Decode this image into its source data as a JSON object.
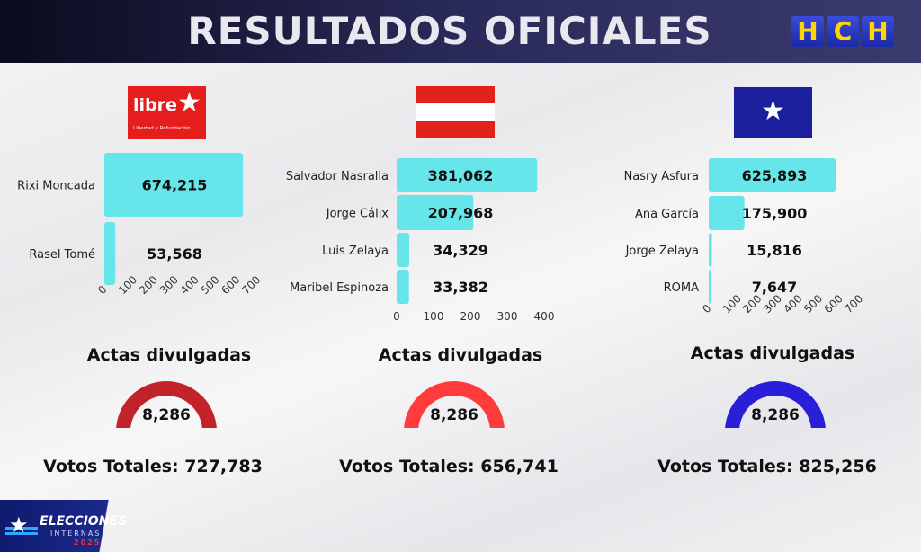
{
  "header": {
    "title": "RESULTADOS OFICIALES",
    "logo_letters": [
      "H",
      "C",
      "H"
    ]
  },
  "parties": [
    {
      "logo": {
        "word": "libre",
        "sub": "Libertad y Refundación"
      },
      "actas_label": "Actas divulgadas",
      "actas_value": "8,286",
      "votos_totales": "Votos Totales: 727,783",
      "gauge_color": "#c2232a"
    },
    {
      "actas_label": "Actas divulgadas",
      "actas_value": "8,286",
      "votos_totales": "Votos Totales: 656,741",
      "gauge_color": "#ff3b3b"
    },
    {
      "actas_label": "Actas divulgadas",
      "actas_value": "8,286",
      "votos_totales": "Votos Totales: 825,256",
      "gauge_color": "#2a1fd8"
    }
  ],
  "colors": {
    "bar": "#66e6ea",
    "flag_red": "#e2211c",
    "flag_blue": "#1c1f9c"
  },
  "footer": {
    "line1": "ELECCIONES",
    "line2": "INTERNAS",
    "line3": "2025"
  },
  "chart_data": [
    {
      "type": "bar",
      "orientation": "horizontal",
      "categories": [
        "Rixi Moncada",
        "Rasel Tomé"
      ],
      "values": [
        674215,
        53568
      ],
      "value_labels": [
        "674,215",
        "53,568"
      ],
      "xlim": [
        0,
        700000
      ],
      "tick_labels": [
        "0",
        "100",
        "200",
        "300",
        "400",
        "500",
        "600",
        "700"
      ],
      "tick_rotation": "diagonal"
    },
    {
      "type": "bar",
      "orientation": "horizontal",
      "categories": [
        "Salvador Nasralla",
        "Jorge Cálix",
        "Luis Zelaya",
        "Maribel Espinoza"
      ],
      "values": [
        381062,
        207968,
        34329,
        33382
      ],
      "value_labels": [
        "381,062",
        "207,968",
        "34,329",
        "33,382"
      ],
      "xlim": [
        0,
        400000
      ],
      "tick_labels": [
        "0",
        "100",
        "200",
        "300",
        "400"
      ],
      "tick_rotation": "none"
    },
    {
      "type": "bar",
      "orientation": "horizontal",
      "categories": [
        "Nasry Asfura",
        "Ana García",
        "Jorge Zelaya",
        "ROMA"
      ],
      "values": [
        625893,
        175900,
        15816,
        7647
      ],
      "value_labels": [
        "625,893",
        "175,900",
        "15,816",
        "7,647"
      ],
      "xlim": [
        0,
        700000
      ],
      "tick_labels": [
        "0",
        "100",
        "200",
        "300",
        "400",
        "500",
        "600",
        "700"
      ],
      "tick_rotation": "diagonal"
    }
  ]
}
